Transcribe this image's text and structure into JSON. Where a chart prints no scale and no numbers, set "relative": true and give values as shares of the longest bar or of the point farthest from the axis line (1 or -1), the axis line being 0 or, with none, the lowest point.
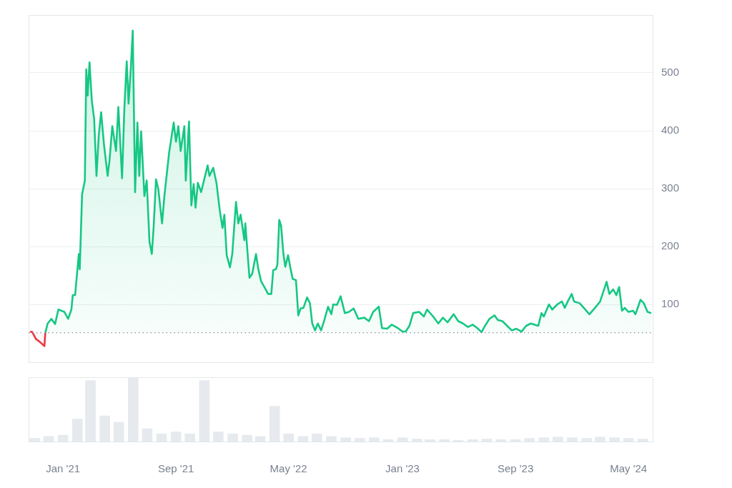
{
  "chart_data": [
    {
      "type": "area",
      "xlim": [
        "2020-10-19",
        "2024-06-22"
      ],
      "ylim": [
        0,
        600
      ],
      "yticks": [
        100,
        200,
        300,
        400,
        500
      ],
      "grid": "y",
      "tick_labels": "y",
      "ref_lines": [
        {
          "axis": "y",
          "value": 51,
          "color": "#8a8f98",
          "line_style": "dotted"
        }
      ],
      "series": [
        {
          "color": "#ea3943",
          "x": [
            "2020-10-22",
            "2020-10-27",
            "2020-11-04",
            "2020-11-11",
            "2020-11-22",
            "2020-11-24"
          ],
          "values": [
            53,
            52,
            40,
            36,
            28,
            51
          ]
        },
        {
          "color": "#16c784",
          "x": [
            "2020-11-24",
            "2020-11-29",
            "2020-12-07",
            "2020-12-15",
            "2020-12-22",
            "2021-01-04",
            "2021-01-12",
            "2021-01-19",
            "2021-01-22",
            "2021-01-27",
            "2021-02-04",
            "2021-02-06",
            "2021-02-11",
            "2021-02-17",
            "2021-02-20",
            "2021-02-23",
            "2021-02-27",
            "2021-03-04",
            "2021-03-09",
            "2021-03-14",
            "2021-03-19",
            "2021-03-24",
            "2021-03-30",
            "2021-04-07",
            "2021-04-11",
            "2021-04-17",
            "2021-04-25",
            "2021-04-30",
            "2021-05-08",
            "2021-05-13",
            "2021-05-18",
            "2021-05-22",
            "2021-05-27",
            "2021-05-31",
            "2021-06-05",
            "2021-06-10",
            "2021-06-14",
            "2021-06-18",
            "2021-06-25",
            "2021-06-30",
            "2021-07-06",
            "2021-07-11",
            "2021-07-15",
            "2021-07-20",
            "2021-07-25",
            "2021-08-02",
            "2021-08-07",
            "2021-08-17",
            "2021-08-27",
            "2021-09-01",
            "2021-09-06",
            "2021-09-11",
            "2021-09-19",
            "2021-09-22",
            "2021-09-29",
            "2021-10-04",
            "2021-10-09",
            "2021-10-13",
            "2021-10-18",
            "2021-10-25",
            "2021-11-08",
            "2021-11-12",
            "2021-11-20",
            "2021-11-27",
            "2021-12-04",
            "2021-12-10",
            "2021-12-14",
            "2021-12-19",
            "2021-12-26",
            "2021-12-31",
            "2022-01-08",
            "2022-01-13",
            "2022-01-18",
            "2022-01-26",
            "2022-01-28",
            "2022-02-06",
            "2022-02-12",
            "2022-02-20",
            "2022-02-25",
            "2022-03-03",
            "2022-03-10",
            "2022-03-18",
            "2022-03-25",
            "2022-03-29",
            "2022-04-04",
            "2022-04-07",
            "2022-04-11",
            "2022-04-15",
            "2022-04-20",
            "2022-04-24",
            "2022-04-30",
            "2022-05-05",
            "2022-05-10",
            "2022-05-17",
            "2022-05-22",
            "2022-05-27",
            "2022-06-02",
            "2022-06-10",
            "2022-06-16",
            "2022-06-21",
            "2022-06-27",
            "2022-07-03",
            "2022-07-10",
            "2022-07-17",
            "2022-07-25",
            "2022-08-01",
            "2022-08-05",
            "2022-08-13",
            "2022-08-21",
            "2022-08-30",
            "2022-09-08",
            "2022-09-18",
            "2022-09-28",
            "2022-10-11",
            "2022-10-21",
            "2022-10-30",
            "2022-11-11",
            "2022-11-18",
            "2022-11-29",
            "2022-12-09",
            "2022-12-22",
            "2023-01-01",
            "2023-01-08",
            "2023-01-16",
            "2023-01-24",
            "2023-02-06",
            "2023-02-16",
            "2023-02-23",
            "2023-03-08",
            "2023-03-19",
            "2023-03-29",
            "2023-04-08",
            "2023-04-21",
            "2023-05-01",
            "2023-05-11",
            "2023-05-22",
            "2023-06-01",
            "2023-06-11",
            "2023-06-20",
            "2023-06-26",
            "2023-07-07",
            "2023-07-18",
            "2023-07-25",
            "2023-08-04",
            "2023-08-14",
            "2023-08-24",
            "2023-09-03",
            "2023-09-14",
            "2023-09-24",
            "2023-10-04",
            "2023-10-20",
            "2023-10-27",
            "2023-11-01",
            "2023-11-12",
            "2023-11-19",
            "2023-11-30",
            "2023-12-10",
            "2023-12-16",
            "2023-12-23",
            "2023-12-31",
            "2024-01-05",
            "2024-01-17",
            "2024-01-27",
            "2024-02-07",
            "2024-02-19",
            "2024-03-01",
            "2024-03-08",
            "2024-03-15",
            "2024-03-21",
            "2024-03-29",
            "2024-04-05",
            "2024-04-11",
            "2024-04-17",
            "2024-04-23",
            "2024-05-01",
            "2024-05-11",
            "2024-05-16",
            "2024-05-27",
            "2024-06-03",
            "2024-06-11",
            "2024-06-19"
          ],
          "values": [
            51,
            67,
            75,
            66,
            91,
            87,
            75,
            91,
            116,
            116,
            187,
            161,
            290,
            314,
            506,
            461,
            518,
            452,
            420,
            322,
            393,
            432,
            377,
            322,
            349,
            408,
            365,
            441,
            318,
            440,
            520,
            447,
            510,
            573,
            294,
            414,
            322,
            399,
            287,
            314,
            208,
            187,
            235,
            316,
            299,
            240,
            287,
            361,
            414,
            381,
            408,
            365,
            408,
            314,
            416,
            271,
            308,
            267,
            310,
            294,
            340,
            322,
            336,
            310,
            263,
            232,
            255,
            185,
            164,
            187,
            277,
            240,
            255,
            211,
            240,
            146,
            153,
            187,
            161,
            140,
            130,
            118,
            118,
            159,
            161,
            169,
            246,
            236,
            187,
            165,
            185,
            163,
            144,
            142,
            81,
            93,
            94,
            112,
            102,
            67,
            55,
            67,
            55,
            73,
            96,
            83,
            100,
            99,
            114,
            85,
            87,
            93,
            75,
            77,
            71,
            87,
            96,
            59,
            58,
            65,
            59,
            53,
            53,
            63,
            85,
            87,
            79,
            91,
            79,
            67,
            77,
            69,
            83,
            71,
            67,
            61,
            65,
            59,
            52,
            61,
            75,
            81,
            73,
            71,
            63,
            55,
            58,
            53,
            63,
            67,
            63,
            85,
            79,
            100,
            91,
            100,
            105,
            94,
            106,
            118,
            105,
            102,
            93,
            83,
            94,
            105,
            122,
            139,
            118,
            126,
            116,
            130,
            89,
            94,
            87,
            89,
            83,
            108,
            102,
            87,
            85
          ]
        }
      ]
    },
    {
      "type": "bar",
      "relative": true,
      "color": "#e6eaee",
      "xlim": [
        "2020-10-19",
        "2024-06-22"
      ],
      "xticks": [
        {
          "value": "2021-01-01",
          "label": "Jan '21"
        },
        {
          "value": "2021-09-01",
          "label": "Sep '21"
        },
        {
          "value": "2022-05-01",
          "label": "May '22"
        },
        {
          "value": "2023-01-01",
          "label": "Jan '23"
        },
        {
          "value": "2023-09-01",
          "label": "Sep '23"
        },
        {
          "value": "2024-05-01",
          "label": "May '24"
        }
      ],
      "x": [
        "2020-11",
        "2020-12",
        "2021-01",
        "2021-02",
        "2021-03",
        "2021-04",
        "2021-05",
        "2021-06",
        "2021-07",
        "2021-08",
        "2021-09",
        "2021-10",
        "2021-11",
        "2021-12",
        "2022-01",
        "2022-02",
        "2022-03",
        "2022-04",
        "2022-05",
        "2022-06",
        "2022-07",
        "2022-08",
        "2022-09",
        "2022-10",
        "2022-11",
        "2022-12",
        "2023-01",
        "2023-02",
        "2023-03",
        "2023-04",
        "2023-05",
        "2023-06",
        "2023-07",
        "2023-08",
        "2023-09",
        "2023-10",
        "2023-11",
        "2023-12",
        "2024-01",
        "2024-02",
        "2024-03",
        "2024-04",
        "2024-05",
        "2024-06"
      ],
      "values": [
        0.05,
        0.08,
        0.1,
        0.35,
        0.95,
        0.4,
        0.3,
        1.0,
        0.2,
        0.12,
        0.15,
        0.12,
        0.95,
        0.15,
        0.12,
        0.1,
        0.08,
        0.55,
        0.12,
        0.08,
        0.12,
        0.08,
        0.06,
        0.05,
        0.06,
        0.03,
        0.06,
        0.04,
        0.03,
        0.03,
        0.02,
        0.03,
        0.04,
        0.03,
        0.03,
        0.05,
        0.06,
        0.07,
        0.06,
        0.05,
        0.07,
        0.06,
        0.05,
        0.04
      ]
    }
  ]
}
